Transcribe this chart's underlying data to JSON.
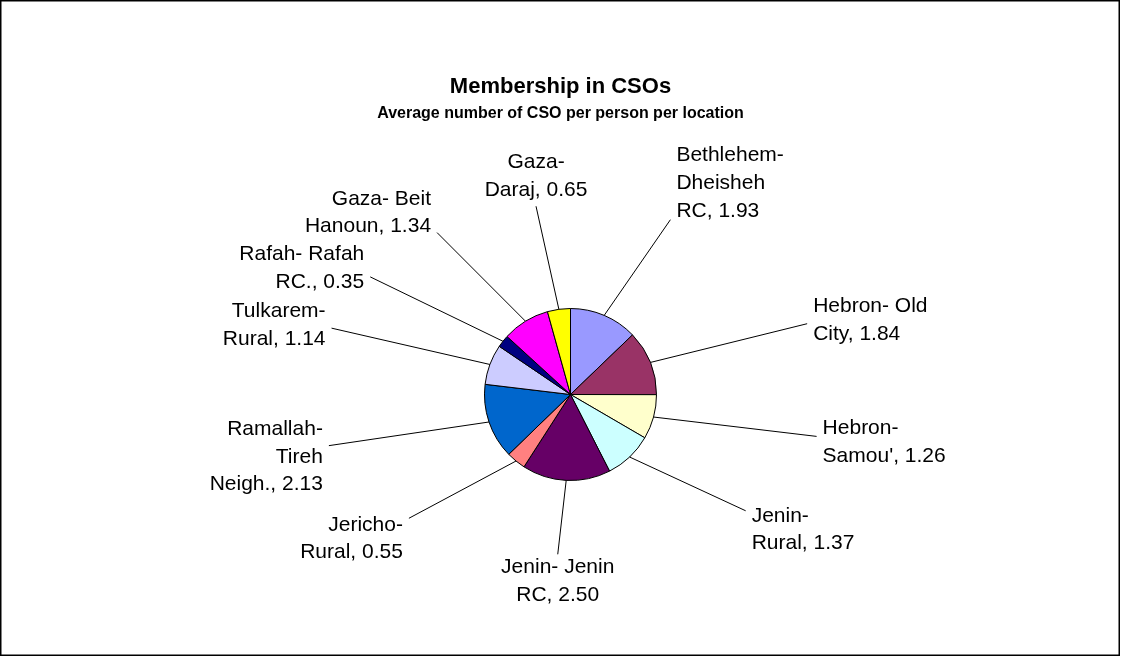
{
  "chart_data": {
    "type": "pie",
    "title": "Membership in CSOs",
    "subtitle": "Average number of CSO per person per location",
    "categories": [
      "Bethlehem- Dheisheh RC",
      "Hebron- Old City",
      "Hebron- Samou'",
      "Jenin- Rural",
      "Jenin- Jenin RC",
      "Jericho- Rural",
      "Ramallah- Tireh Neigh.",
      "Tulkarem- Rural",
      "Rafah- Rafah RC.",
      "Gaza- Beit Hanoun",
      "Gaza- Daraj"
    ],
    "values": [
      1.93,
      1.84,
      1.26,
      1.37,
      2.5,
      0.55,
      2.13,
      1.14,
      0.35,
      1.34,
      0.65
    ],
    "value_labels": [
      "1.93",
      "1.84",
      "1.26",
      "1.37",
      "2.50",
      "0.55",
      "2.13",
      "1.14",
      "0.35",
      "1.34",
      "0.65"
    ],
    "colors": [
      "#9999ff",
      "#993366",
      "#ffffcc",
      "#ccffff",
      "#660066",
      "#ff8080",
      "#0066cc",
      "#ccccff",
      "#000080",
      "#ff00ff",
      "#ffff00"
    ],
    "legend": false
  }
}
